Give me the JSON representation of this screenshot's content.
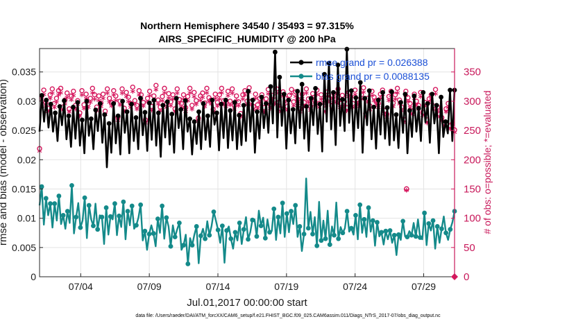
{
  "chart_data": {
    "type": "line",
    "title_line1": "Northern Hemisphere 34540 / 35493 = 97.315%",
    "title_line2": "AIRS_SPECIFIC_HUMIDITY @ 200 hPa",
    "xlabel": "Jul.01,2017 00:00:00 start",
    "ylabel_left": "rmse and bias (model - observation)",
    "ylabel_right": "# of obs: o=possible; *=evaluated",
    "footnote": "data file: /Users/raeder/DAI/ATM_forcXX/CAM6_setup/f.e21.FHIST_BGC.f09_025.CAM6assim.011/Diags_NTrS_2017-07/obs_diag_output.nc",
    "x_tick_labels": [
      "07/04",
      "07/09",
      "07/14",
      "07/19",
      "07/24",
      "07/29"
    ],
    "x_tick_values": [
      4,
      9,
      14,
      19,
      24,
      29
    ],
    "xlim": [
      1,
      31.25
    ],
    "ylim_left": [
      0,
      0.039
    ],
    "ylim_right": [
      0,
      390
    ],
    "y_left_tick_values": [
      0,
      0.005,
      0.01,
      0.015,
      0.02,
      0.025,
      0.03,
      0.035
    ],
    "y_left_tick_labels": [
      "0",
      "0.005",
      "0.01",
      "0.015",
      "0.02",
      "0.025",
      "0.03",
      "0.035"
    ],
    "y_right_tick_values": [
      0,
      50,
      100,
      150,
      200,
      250,
      300,
      350
    ],
    "y_right_tick_labels": [
      "0",
      "50",
      "100",
      "150",
      "200",
      "250",
      "300",
      "350"
    ],
    "legend": [
      {
        "label": "rmse grand pr = 0.026388",
        "color": "#000000"
      },
      {
        "label": "bias grand pr = 0.0088135",
        "color": "#148a8a"
      }
    ],
    "colors": {
      "rmse": "#000000",
      "bias": "#148a8a",
      "obs": "#d6185e",
      "grid": "#e3e3e3",
      "axis": "#262626"
    },
    "series": [
      {
        "name": "rmse",
        "values": [
          0.0248,
          0.031,
          0.0265,
          0.0302,
          0.0255,
          0.0295,
          0.0248,
          0.028,
          0.0232,
          0.0291,
          0.0259,
          0.0301,
          0.0235,
          0.0275,
          0.0222,
          0.029,
          0.0236,
          0.0298,
          0.0224,
          0.0268,
          0.0211,
          0.03,
          0.0241,
          0.027,
          0.0218,
          0.0285,
          0.0249,
          0.0296,
          0.0229,
          0.0277,
          0.0187,
          0.0262,
          0.0212,
          0.0296,
          0.0228,
          0.0275,
          0.0209,
          0.03,
          0.0246,
          0.0282,
          0.0211,
          0.0295,
          0.0232,
          0.0272,
          0.0218,
          0.0305,
          0.0242,
          0.0281,
          0.0215,
          0.0297,
          0.0234,
          0.0302,
          0.0224,
          0.028,
          0.0205,
          0.0293,
          0.0238,
          0.0299,
          0.0226,
          0.0278,
          0.0212,
          0.0305,
          0.0254,
          0.0286,
          0.0218,
          0.0301,
          0.0248,
          0.027,
          0.0209,
          0.0265,
          0.0227,
          0.0282,
          0.0218,
          0.0296,
          0.0234,
          0.0275,
          0.0222,
          0.0302,
          0.026,
          0.028,
          0.0216,
          0.0295,
          0.0237,
          0.0302,
          0.022,
          0.0284,
          0.0233,
          0.0298,
          0.0218,
          0.0276,
          0.0225,
          0.0293,
          0.0232,
          0.0317,
          0.0248,
          0.0302,
          0.0212,
          0.0282,
          0.0236,
          0.0307,
          0.0254,
          0.0296,
          0.0246,
          0.0325,
          0.0262,
          0.0384,
          0.0238,
          0.0341,
          0.0258,
          0.0312,
          0.0219,
          0.0302,
          0.0245,
          0.0286,
          0.0228,
          0.0317,
          0.0254,
          0.0329,
          0.0236,
          0.0291,
          0.0215,
          0.0305,
          0.0259,
          0.0322,
          0.0244,
          0.0295,
          0.0214,
          0.0346,
          0.0265,
          0.0365,
          0.0252,
          0.0315,
          0.0225,
          0.0362,
          0.0258,
          0.0303,
          0.0249,
          0.0389,
          0.0263,
          0.0318,
          0.0232,
          0.0306,
          0.0254,
          0.0332,
          0.0212,
          0.0305,
          0.0259,
          0.0318,
          0.0235,
          0.029,
          0.0219,
          0.0302,
          0.0243,
          0.0315,
          0.0236,
          0.0289,
          0.0225,
          0.0316,
          0.0233,
          0.0277,
          0.022,
          0.0298,
          0.0246,
          0.0312,
          0.0211,
          0.0284,
          0.0239,
          0.0309,
          0.0248,
          0.0288,
          0.0232,
          0.0315,
          0.0264,
          0.0296,
          0.0229,
          0.0312,
          0.0262,
          0.0293,
          0.0211,
          0.0307,
          0.0239,
          0.0265,
          0.0245,
          0.0319,
          0.0232,
          0.0319
        ]
      },
      {
        "name": "bias",
        "values": [
          0.0122,
          0.0154,
          0.0089,
          0.0134,
          0.0105,
          0.0125,
          0.0084,
          0.0125,
          0.0096,
          0.0138,
          0.009,
          0.0105,
          0.0082,
          0.0112,
          0.0092,
          0.0156,
          0.0074,
          0.0102,
          0.0126,
          0.0084,
          0.0096,
          0.0135,
          0.0066,
          0.0122,
          0.0098,
          0.0087,
          0.0125,
          0.0081,
          0.0105,
          0.0102,
          0.0056,
          0.0118,
          0.0072,
          0.0103,
          0.0098,
          0.0125,
          0.0071,
          0.0104,
          0.0085,
          0.0128,
          0.0064,
          0.0112,
          0.0088,
          0.0121,
          0.0082,
          0.0088,
          0.0101,
          0.0123,
          0.0062,
          0.0078,
          0.0046,
          0.0073,
          0.0088,
          0.0074,
          0.0052,
          0.0099,
          0.0075,
          0.0121,
          0.0065,
          0.0101,
          0.0086,
          0.0052,
          0.0088,
          0.0068,
          0.0081,
          0.0092,
          0.0046,
          0.0054,
          0.0072,
          0.0022,
          0.0066,
          0.0054,
          0.0072,
          0.0086,
          0.0023,
          0.007,
          0.0082,
          0.0065,
          0.0095,
          0.0071,
          0.0087,
          0.0111,
          0.0096,
          0.008,
          0.0058,
          0.0087,
          0.0024,
          0.0079,
          0.0086,
          0.0065,
          0.0048,
          0.0076,
          0.0062,
          0.0092,
          0.0056,
          0.0081,
          0.0102,
          0.0064,
          0.0076,
          0.0097,
          0.0098,
          0.0069,
          0.0113,
          0.0087,
          0.0101,
          0.0066,
          0.0098,
          0.0076,
          0.0078,
          0.0116,
          0.0063,
          0.0102,
          0.0074,
          0.0126,
          0.0068,
          0.0108,
          0.0076,
          0.0112,
          0.009,
          0.0122,
          0.0068,
          0.0086,
          0.0044,
          0.0073,
          0.0168,
          0.0083,
          0.0111,
          0.0073,
          0.0102,
          0.0053,
          0.0128,
          0.0062,
          0.0096,
          0.0065,
          0.0113,
          0.0055,
          0.0086,
          0.0071,
          0.0127,
          0.0065,
          0.0085,
          0.0075,
          0.0083,
          0.0112,
          0.0077,
          0.0083,
          0.0072,
          0.0105,
          0.0064,
          0.0123,
          0.0075,
          0.0098,
          0.0068,
          0.0118,
          0.0077,
          0.0096,
          0.0053,
          0.0093,
          0.0069,
          0.0076,
          0.0055,
          0.0078,
          0.0064,
          0.0079,
          0.0058,
          0.0071,
          0.0037,
          0.0072,
          0.0063,
          0.0095,
          0.0069,
          0.0068,
          0.0078,
          0.0071,
          0.0092,
          0.0069,
          0.0098,
          0.0067,
          0.0064,
          0.0109,
          0.0054,
          0.0091,
          0.0079,
          0.0096,
          0.0048,
          0.0086,
          0.0058,
          0.0082,
          0.0103,
          0.0075,
          0.0063,
          0.0081,
          0.0093,
          0.0112
        ]
      },
      {
        "name": "obs_possible",
        "values": [
          219,
          309,
          319,
          298,
          288,
          311,
          321,
          296,
          305,
          318,
          322,
          290,
          302,
          314,
          287,
          309,
          317,
          293,
          301,
          280,
          318,
          294,
          312,
          296,
          305,
          322,
          311,
          290,
          309,
          297,
          312,
          283,
          321,
          305,
          298,
          318,
          309,
          273,
          300,
          321,
          288,
          315,
          307,
          296,
          324,
          301,
          293,
          318,
          311,
          298,
          268,
          305,
          317,
          291,
          309,
          327,
          302,
          290,
          308,
          322,
          296,
          313,
          299,
          311,
          287,
          321,
          303,
          296,
          311,
          289,
          308,
          322,
          293,
          315,
          301,
          271,
          309,
          314,
          297,
          322,
          306,
          302,
          286,
          312,
          298,
          311,
          322,
          301,
          297,
          317,
          300,
          321,
          293,
          309,
          299,
          279,
          311,
          318,
          300,
          323,
          300,
          291,
          312,
          294,
          305,
          311,
          289,
          304,
          320,
          294,
          310,
          302,
          321,
          298,
          287,
          316,
          305,
          291,
          310,
          320,
          299,
          316,
          303,
          287,
          312,
          298,
          321,
          304,
          291,
          313,
          301,
          319,
          296,
          311,
          302,
          287,
          316,
          305,
          292,
          313,
          304,
          321,
          296,
          310,
          299,
          289,
          315,
          307,
          296,
          319,
          303,
          297,
          311,
          323,
          279,
          305,
          292,
          317,
          307,
          301,
          296,
          312,
          319,
          284,
          278,
          308,
          317,
          297,
          311,
          322,
          302,
          290,
          269,
          317,
          306,
          296,
          283,
          312,
          300,
          293,
          315,
          281,
          298,
          268,
          304,
          311,
          292,
          320,
          290,
          278,
          272,
          263,
          287,
          296,
          258,
          262,
          251
        ]
      },
      {
        "name": "obs_evaluated",
        "values": [
          212,
          300,
          309,
          289,
          280,
          302,
          311,
          287,
          296,
          308,
          312,
          282,
          293,
          304,
          279,
          300,
          307,
          284,
          292,
          272,
          308,
          285,
          302,
          287,
          296,
          312,
          301,
          281,
          299,
          288,
          302,
          275,
          311,
          296,
          289,
          308,
          299,
          265,
          291,
          311,
          280,
          305,
          297,
          287,
          314,
          292,
          284,
          308,
          301,
          289,
          260,
          296,
          307,
          282,
          299,
          317,
          293,
          281,
          298,
          312,
          287,
          303,
          290,
          301,
          279,
          311,
          294,
          287,
          301,
          280,
          298,
          312,
          284,
          305,
          292,
          263,
          299,
          304,
          288,
          312,
          297,
          293,
          278,
          302,
          289,
          301,
          312,
          292,
          288,
          307,
          291,
          311,
          284,
          299,
          290,
          271,
          301,
          308,
          291,
          313,
          291,
          282,
          302,
          285,
          296,
          301,
          280,
          295,
          310,
          285,
          300,
          293,
          311,
          289,
          279,
          306,
          296,
          282,
          300,
          310,
          290,
          306,
          294,
          279,
          302,
          289,
          311,
          295,
          282,
          303,
          292,
          309,
          287,
          301,
          293,
          279,
          306,
          296,
          283,
          303,
          295,
          311,
          287,
          300,
          290,
          281,
          305,
          298,
          287,
          309,
          294,
          288,
          301,
          313,
          271,
          296,
          283,
          307,
          298,
          292,
          287,
          302,
          309,
          276,
          270,
          299,
          307,
          288,
          301,
          312,
          293,
          281,
          261,
          307,
          297,
          287,
          275,
          302,
          291,
          284,
          305,
          273,
          289,
          260,
          295,
          301,
          283,
          310,
          281,
          270,
          264,
          255,
          279,
          287,
          250,
          254,
          244
        ]
      }
    ],
    "outlier_obs": {
      "x": 27.75,
      "possible": 150,
      "evaluated": 145
    },
    "terminal_marker": {
      "x": 31.25,
      "value": 0
    }
  }
}
